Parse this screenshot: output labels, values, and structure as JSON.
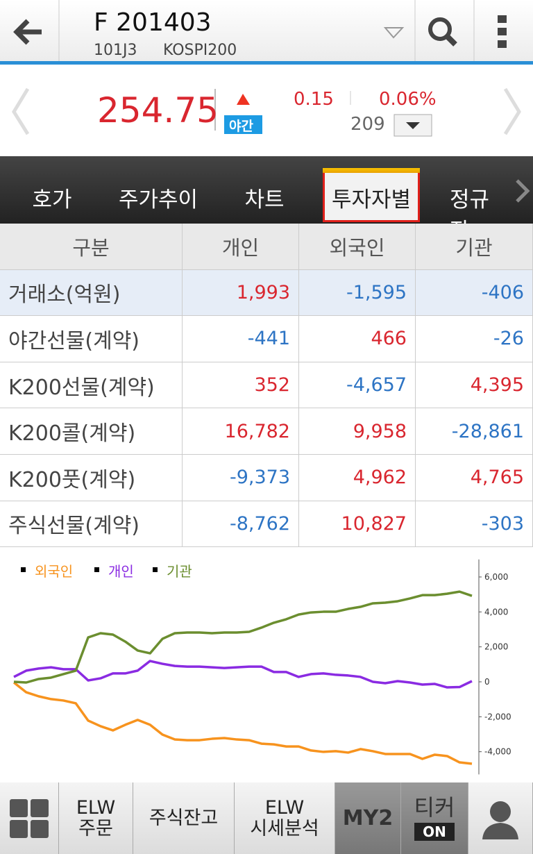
{
  "header": {
    "title": "F 201403",
    "code": "101J3",
    "market": "KOSPI200"
  },
  "quote": {
    "price": "254.75",
    "session": "야간",
    "change": "0.15",
    "change_pct": "0.06%",
    "volume": "209"
  },
  "tabs": {
    "items": [
      "호가",
      "주가추이",
      "차트",
      "투자자별",
      "정규장"
    ],
    "selected": 3
  },
  "table": {
    "header": [
      "구분",
      "개인",
      "외국인",
      "기관"
    ],
    "rows": [
      [
        "거래소(억원)",
        "1,993",
        "-1,595",
        "-406"
      ],
      [
        "야간선물(계약)",
        "-441",
        "466",
        "-26"
      ],
      [
        "K200선물(계약)",
        "352",
        "-4,657",
        "4,395"
      ],
      [
        "K200콜(계약)",
        "16,782",
        "9,958",
        "-28,861"
      ],
      [
        "K200풋(계약)",
        "-9,373",
        "4,962",
        "4,765"
      ],
      [
        "주식선물(계약)",
        "-8,762",
        "10,827",
        "-303"
      ]
    ]
  },
  "chart_data": {
    "type": "line",
    "ylim": [
      -5300,
      7000
    ],
    "yticks": [
      {
        "value": 6000,
        "label": "6,000"
      },
      {
        "value": 4000,
        "label": "4,000"
      },
      {
        "value": 2000,
        "label": "2,000"
      },
      0,
      {
        "value": -2000,
        "label": "-2,000"
      },
      {
        "value": -4000,
        "label": "-4,000"
      }
    ],
    "series": [
      {
        "name": "외국인",
        "color": "#f7931e",
        "values": [
          -40,
          -600,
          -830,
          -990,
          -1070,
          -1230,
          -2220,
          -2540,
          -2780,
          -2460,
          -2180,
          -2460,
          -3020,
          -3300,
          -3340,
          -3340,
          -3260,
          -3220,
          -3300,
          -3340,
          -3540,
          -3580,
          -3700,
          -3700,
          -3930,
          -4010,
          -3970,
          -4050,
          -3850,
          -3970,
          -4130,
          -4130,
          -4130,
          -4410,
          -4170,
          -4250,
          -4610,
          -4690
        ]
      },
      {
        "name": "개인",
        "color": "#8a2be2",
        "values": [
          280,
          640,
          760,
          830,
          720,
          720,
          80,
          200,
          480,
          480,
          640,
          1190,
          1030,
          910,
          870,
          870,
          830,
          790,
          830,
          870,
          870,
          560,
          560,
          280,
          440,
          480,
          400,
          360,
          280,
          0,
          -80,
          40,
          -40,
          -160,
          -120,
          -320,
          -300,
          40
        ]
      },
      {
        "name": "기관",
        "color": "#6b8e2f",
        "values": [
          0,
          -40,
          160,
          240,
          440,
          640,
          2540,
          2780,
          2700,
          2300,
          1790,
          1630,
          2460,
          2780,
          2820,
          2820,
          2780,
          2820,
          2820,
          2860,
          3100,
          3380,
          3580,
          3850,
          3970,
          4010,
          4010,
          4170,
          4290,
          4490,
          4530,
          4610,
          4770,
          4960,
          4960,
          5040,
          5160,
          4920
        ]
      }
    ]
  },
  "bottom_nav": {
    "items": [
      [
        "ELW",
        "주문"
      ],
      [
        "주식잔고"
      ],
      [
        "ELW",
        "시세분석"
      ],
      [
        "MY2"
      ],
      [
        "티커",
        "ON"
      ]
    ]
  }
}
